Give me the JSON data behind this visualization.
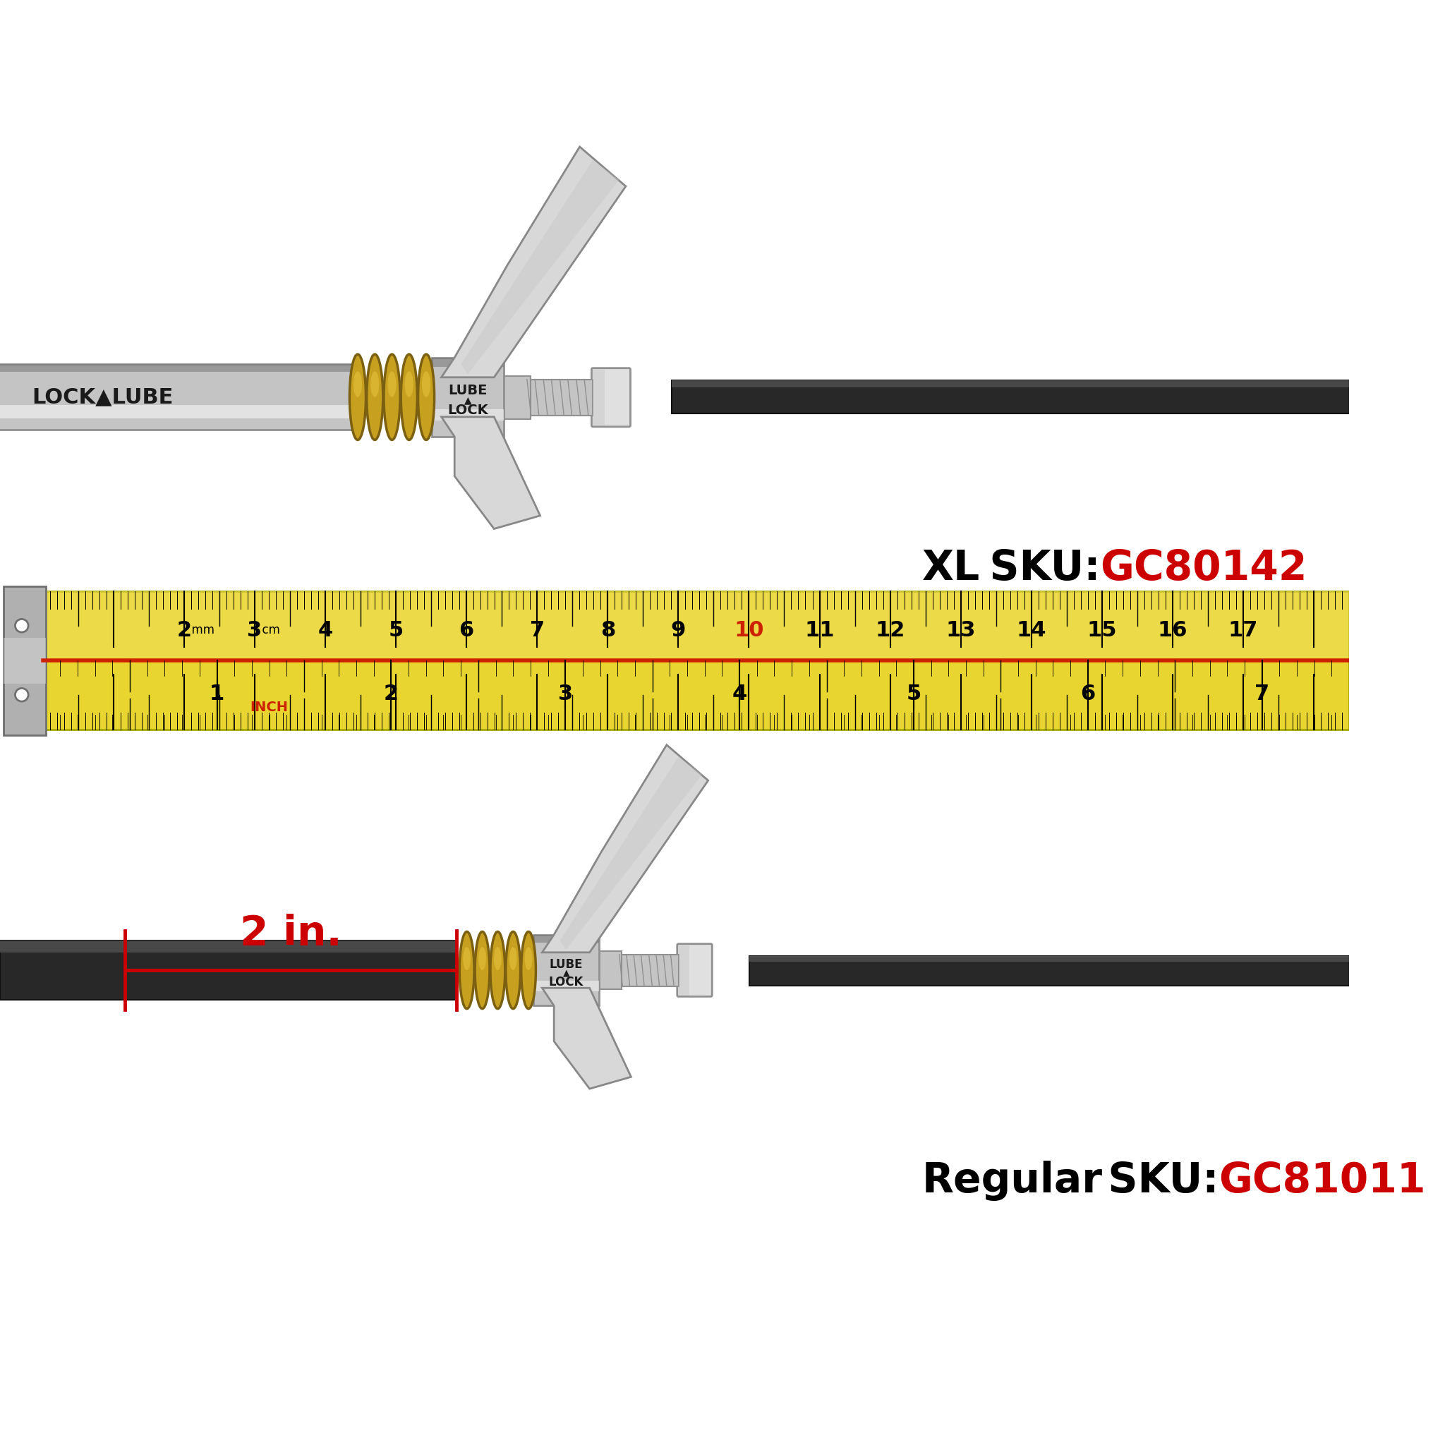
{
  "background_color": "#ffffff",
  "xl_label": "XL",
  "xl_sku_text": "SKU: GC80142",
  "xl_sku_colored": "GC80142",
  "regular_label": "Regular",
  "regular_sku_text": "SKU: GC81011",
  "regular_sku_colored": "GC81011",
  "measurement_text": "2 in.",
  "label_color": "#000000",
  "sku_color": "#cc0000",
  "ruler_bg_color": "#e8d530",
  "ruler_bg_color2": "#f0e060",
  "ruler_text_color": "#000000",
  "ruler_red_line_color": "#cc2200",
  "measurement_arrow_color": "#cc0000",
  "ruler_cm_numbers": [
    "2",
    "3",
    "4",
    "5",
    "6",
    "7",
    "8",
    "9",
    "10",
    "11",
    "12",
    "13",
    "14",
    "15",
    "16",
    "17"
  ],
  "ruler_inch_numbers": [
    "1",
    "2",
    "3",
    "4",
    "5",
    "6",
    "7"
  ],
  "metal_light": "#e0e0e0",
  "metal_mid": "#c4c4c4",
  "metal_dark": "#909090",
  "metal_shadow": "#707070",
  "metal_highlight": "#f0f0f0",
  "spring_color": "#c8a020",
  "spring_dark": "#7a6010",
  "hose_color": "#282828",
  "hose_mid": "#383838",
  "jaw_light": "#d8d8d8",
  "jaw_mid": "#b8b8b8",
  "jaw_dark": "#888888"
}
